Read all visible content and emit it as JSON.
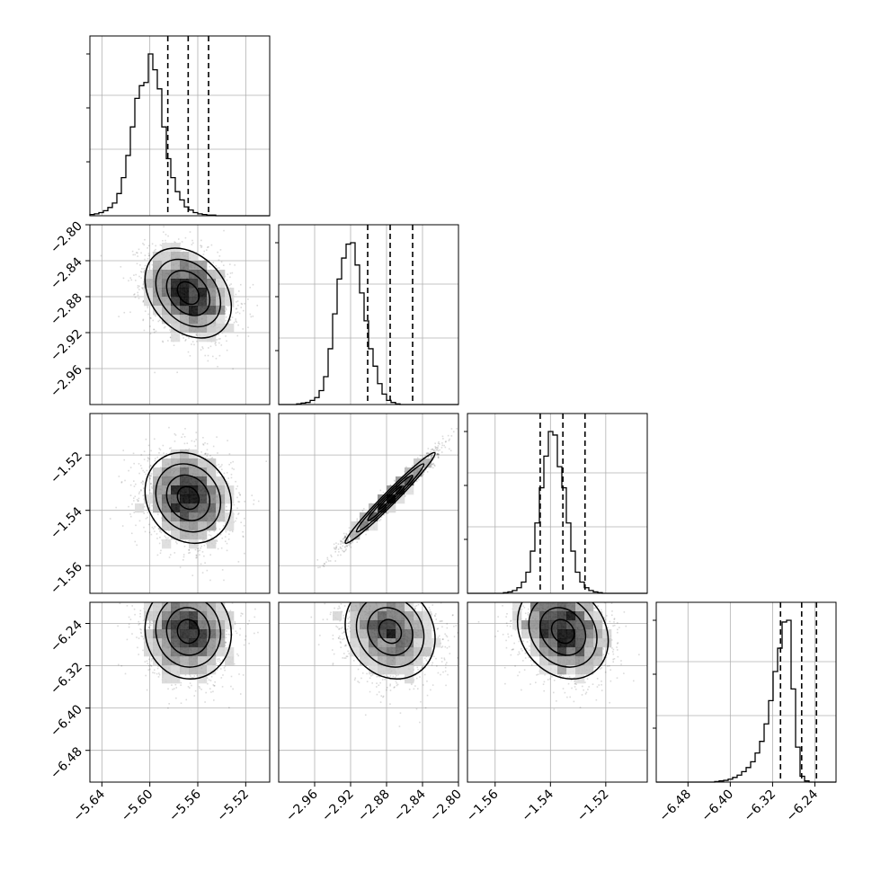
{
  "chart_data": {
    "type": "corner",
    "params": [
      {
        "range": [
          -5.65,
          -5.5
        ],
        "ticks": [
          "−5.64",
          "−5.60",
          "−5.56",
          "−5.52"
        ],
        "tick_values": [
          -5.64,
          -5.6,
          -5.56,
          -5.52
        ],
        "center": -5.568,
        "sigma": 0.018,
        "quantiles": [
          -5.585,
          -5.568,
          -5.551
        ]
      },
      {
        "range": [
          -3.0,
          -2.8
        ],
        "ticks": [
          "−2.96",
          "−2.92",
          "−2.88",
          "−2.84",
          "−2.80"
        ],
        "tick_values": [
          -2.96,
          -2.92,
          -2.88,
          -2.84,
          -2.8
        ],
        "center": -2.876,
        "sigma": 0.025,
        "quantiles": [
          -2.901,
          -2.876,
          -2.851
        ]
      },
      {
        "range": [
          -1.57,
          -1.505
        ],
        "ticks": [
          "−1.56",
          "−1.54",
          "−1.52"
        ],
        "tick_values": [
          -1.56,
          -1.54,
          -1.52
        ],
        "center": -1.5355,
        "sigma": 0.0082,
        "quantiles": [
          -1.5437,
          -1.5355,
          -1.5275
        ]
      },
      {
        "range": [
          -6.54,
          -6.2
        ],
        "ticks": [
          "−6.48",
          "−6.40",
          "−6.32",
          "−6.24"
        ],
        "tick_values": [
          -6.48,
          -6.4,
          -6.32,
          -6.24
        ],
        "center": -6.255,
        "sigma": 0.045,
        "quantiles": [
          -6.305,
          -6.265,
          -6.237
        ]
      }
    ],
    "row_tick_labels": {
      "1": [
        "−2.80",
        "−2.84",
        "−2.88",
        "−2.92",
        "−2.96"
      ],
      "2": [
        "−1.52",
        "−1.54",
        "−1.56"
      ],
      "3": [
        "−6.24",
        "−6.32",
        "−6.40",
        "−6.48"
      ]
    },
    "histograms": [
      {
        "param": 0,
        "bin_edges_start": -5.65,
        "bin_width": 0.00375,
        "counts": [
          2,
          3,
          5,
          8,
          13,
          20,
          35,
          60,
          95,
          140,
          185,
          205,
          210,
          255,
          230,
          200,
          140,
          90,
          60,
          38,
          25,
          14,
          9,
          5,
          3,
          2,
          1,
          1,
          0,
          0,
          0,
          0,
          0,
          0,
          0,
          0,
          0,
          0,
          0,
          0
        ]
      },
      {
        "param": 1,
        "bin_edges_start": -3.0,
        "bin_width": 0.005,
        "counts": [
          0,
          0,
          0,
          0,
          1,
          2,
          3,
          6,
          10,
          20,
          40,
          80,
          130,
          180,
          210,
          230,
          232,
          200,
          160,
          120,
          80,
          55,
          30,
          15,
          6,
          3,
          1,
          0,
          0,
          0,
          0,
          0,
          0,
          0,
          0,
          0,
          0,
          0,
          0,
          0
        ]
      },
      {
        "param": 2,
        "bin_edges_start": -1.57,
        "bin_width": 0.001625,
        "counts": [
          0,
          0,
          0,
          0,
          0,
          0,
          0,
          0,
          1,
          2,
          4,
          8,
          16,
          30,
          60,
          100,
          150,
          195,
          230,
          225,
          180,
          150,
          100,
          60,
          30,
          16,
          8,
          4,
          2,
          1,
          0,
          0,
          0,
          0,
          0,
          0,
          0,
          0,
          0,
          0
        ]
      },
      {
        "param": 3,
        "bin_edges_start": -6.54,
        "bin_width": 0.0085,
        "counts": [
          0,
          0,
          0,
          0,
          0,
          0,
          0,
          0,
          0,
          0,
          0,
          0,
          0,
          1,
          2,
          3,
          5,
          8,
          12,
          18,
          25,
          35,
          50,
          70,
          100,
          140,
          190,
          230,
          275,
          278,
          160,
          60,
          10,
          2,
          0,
          0,
          0,
          0,
          0,
          0
        ]
      }
    ],
    "pairs": [
      {
        "x": 0,
        "y": 1,
        "corr": -0.3
      },
      {
        "x": 0,
        "y": 2,
        "corr": -0.15
      },
      {
        "x": 1,
        "y": 2,
        "corr": 0.98
      },
      {
        "x": 0,
        "y": 3,
        "corr": -0.05
      },
      {
        "x": 1,
        "y": 3,
        "corr": -0.15
      },
      {
        "x": 2,
        "y": 3,
        "corr": -0.2
      }
    ],
    "grid": true
  }
}
